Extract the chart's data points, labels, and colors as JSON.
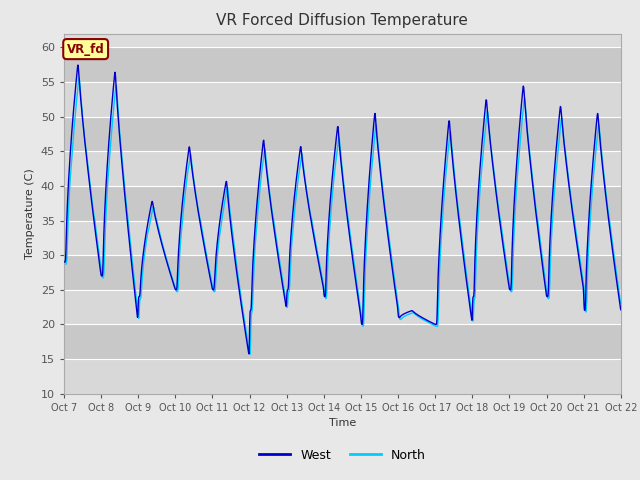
{
  "title": "VR Forced Diffusion Temperature",
  "xlabel": "Time",
  "ylabel": "Temperature (C)",
  "ylim": [
    10,
    62
  ],
  "xlim": [
    0,
    15
  ],
  "xtick_labels": [
    "Oct 7",
    "Oct 8",
    "Oct 9",
    "Oct 10",
    "Oct 11",
    "Oct 12",
    "Oct 13",
    "Oct 14",
    "Oct 15",
    "Oct 16",
    "Oct 17",
    "Oct 18",
    "Oct 19",
    "Oct 20",
    "Oct 21",
    "Oct 22"
  ],
  "ytick_vals": [
    10,
    15,
    20,
    25,
    30,
    35,
    40,
    45,
    50,
    55,
    60
  ],
  "west_color": "#0000CD",
  "north_color": "#00CCFF",
  "bg_color": "#DCDCDC",
  "fig_bg_color": "#E8E8E8",
  "annotation_text": "VR_fd",
  "annotation_bg": "#FFFF99",
  "annotation_fg": "#8B0000",
  "legend_west": "West",
  "legend_north": "North",
  "title_fontsize": 11,
  "band_colors": [
    "#D8D8D8",
    "#C8C8C8"
  ]
}
